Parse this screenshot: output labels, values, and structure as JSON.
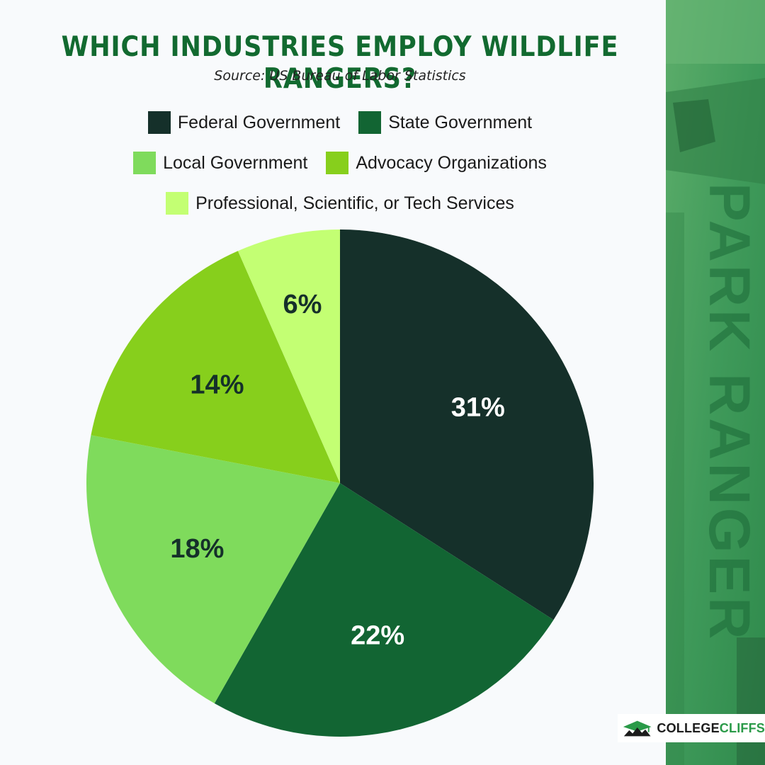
{
  "chart_data": {
    "type": "pie",
    "title": "WHICH INDUSTRIES EMPLOY WILDLIFE RANGERS?",
    "subtitle": "Source: US Bureau of Labor Statistics",
    "legend_position": "top",
    "slices": [
      {
        "name": "Federal Government",
        "value": 31,
        "label": "31%",
        "color": "#15302a",
        "label_color": "#ffffff"
      },
      {
        "name": "State Government",
        "value": 22,
        "label": "22%",
        "color": "#126533",
        "label_color": "#ffffff"
      },
      {
        "name": "Local Government",
        "value": 18,
        "label": "18%",
        "color": "#7fdb5c",
        "label_color": "#15302a"
      },
      {
        "name": "Advocacy Organizations",
        "value": 14,
        "label": "14%",
        "color": "#87cf1c",
        "label_color": "#15302a"
      },
      {
        "name": "Professional, Scientific, or Tech Services",
        "value": 6,
        "label": "6%",
        "color": "#c3ff73",
        "label_color": "#15302a"
      }
    ]
  },
  "side_banner": {
    "text": "PARK RANGER",
    "color": "#3a9e5a"
  },
  "brand": {
    "name_part1": "COLLEGE",
    "name_part2": "CLIFFS",
    "icon": "mountain-cap-icon"
  }
}
